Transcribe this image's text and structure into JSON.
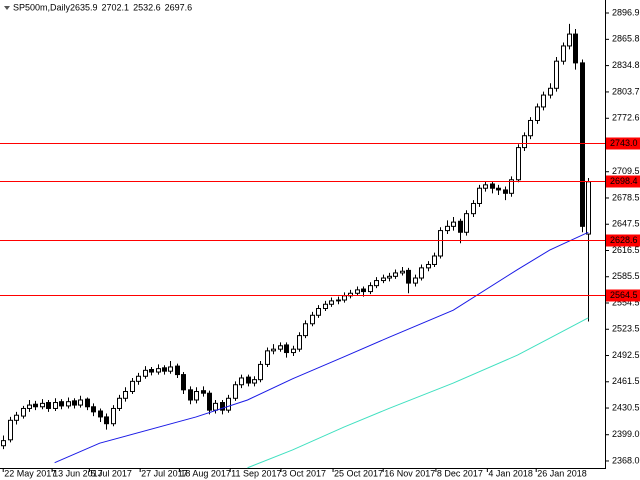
{
  "chart_data": {
    "type": "candlestick",
    "title": "SP500m,Daily",
    "header_values": [
      2635.9,
      2702.1,
      2532.6,
      2697.6
    ],
    "ylim": [
      2359.7,
      2908.7
    ],
    "yticks": [
      2896.9,
      2865.8,
      2834.8,
      2803.7,
      2772.6,
      2709.5,
      2678.5,
      2647.5,
      2616.5,
      2585.5,
      2554.5,
      2523.5,
      2492.5,
      2461.5,
      2430.5,
      {
        "value": 2399,
        "label": "2399.0"
      },
      {
        "value": 2368,
        "label": "2368.0"
      }
    ],
    "xlim": [
      -0.5,
      93.6
    ],
    "xticks": [
      {
        "value": 0,
        "label": "22 May 2017"
      },
      {
        "value": 7.6,
        "label": "13 Jun 2017"
      },
      {
        "value": 13.4,
        "label": "5 Jul 2017"
      },
      {
        "value": 21.3,
        "label": "27 Jul 2017"
      },
      {
        "value": 27.4,
        "label": "18 Aug 2017"
      },
      {
        "value": 35.3,
        "label": "11 Sep 2017"
      },
      {
        "value": 43.2,
        "label": "3 Oct 2017"
      },
      {
        "value": 51.3,
        "label": "25 Oct 2017"
      },
      {
        "value": 59.1,
        "label": "16 Nov 2017"
      },
      {
        "value": 67.3,
        "label": "8 Dec 2017"
      },
      {
        "value": 75.3,
        "label": "4 Jan 2018"
      },
      {
        "value": 82.9,
        "label": "26 Jan 2018"
      }
    ],
    "up_color": "#ffffff",
    "down_color": "#000000",
    "outline_color": "#000000",
    "ohlc": [
      [
        2386,
        2398,
        2382,
        2392
      ],
      [
        2393,
        2420,
        2390,
        2416
      ],
      [
        2416,
        2426,
        2411,
        2422
      ],
      [
        2421,
        2433,
        2418,
        2430
      ],
      [
        2430,
        2440,
        2426,
        2434
      ],
      [
        2435,
        2439,
        2428,
        2432
      ],
      [
        2432,
        2441,
        2429,
        2436
      ],
      [
        2437,
        2440,
        2426,
        2430
      ],
      [
        2430,
        2442,
        2427,
        2437
      ],
      [
        2438,
        2441,
        2429,
        2433
      ],
      [
        2433,
        2443,
        2430,
        2438
      ],
      [
        2439,
        2442,
        2430,
        2434
      ],
      [
        2434,
        2445,
        2431,
        2440
      ],
      [
        2441,
        2443,
        2428,
        2432
      ],
      [
        2432,
        2436,
        2421,
        2426
      ],
      [
        2427,
        2430,
        2414,
        2420
      ],
      [
        2420,
        2424,
        2405,
        2412
      ],
      [
        2412,
        2434,
        2409,
        2430
      ],
      [
        2430,
        2446,
        2427,
        2442
      ],
      [
        2442,
        2455,
        2438,
        2450
      ],
      [
        2450,
        2466,
        2447,
        2462
      ],
      [
        2462,
        2472,
        2458,
        2468
      ],
      [
        2468,
        2480,
        2465,
        2475
      ],
      [
        2476,
        2479,
        2469,
        2473
      ],
      [
        2473,
        2482,
        2470,
        2477
      ],
      [
        2478,
        2481,
        2470,
        2474
      ],
      [
        2474,
        2486,
        2471,
        2479
      ],
      [
        2480,
        2483,
        2466,
        2470
      ],
      [
        2470,
        2473,
        2447,
        2452
      ],
      [
        2452,
        2456,
        2435,
        2440
      ],
      [
        2440,
        2455,
        2436,
        2450
      ],
      [
        2451,
        2456,
        2444,
        2448
      ],
      [
        2448,
        2451,
        2423,
        2428
      ],
      [
        2428,
        2440,
        2424,
        2436
      ],
      [
        2437,
        2440,
        2423,
        2428
      ],
      [
        2428,
        2446,
        2425,
        2442
      ],
      [
        2442,
        2462,
        2439,
        2458
      ],
      [
        2458,
        2470,
        2454,
        2466
      ],
      [
        2467,
        2470,
        2456,
        2460
      ],
      [
        2460,
        2468,
        2456,
        2464
      ],
      [
        2464,
        2486,
        2461,
        2482
      ],
      [
        2482,
        2502,
        2479,
        2498
      ],
      [
        2498,
        2506,
        2494,
        2500
      ],
      [
        2500,
        2508,
        2497,
        2504
      ],
      [
        2505,
        2508,
        2490,
        2496
      ],
      [
        2496,
        2504,
        2492,
        2500
      ],
      [
        2500,
        2520,
        2497,
        2516
      ],
      [
        2516,
        2534,
        2513,
        2530
      ],
      [
        2530,
        2544,
        2527,
        2540
      ],
      [
        2540,
        2552,
        2537,
        2548
      ],
      [
        2548,
        2557,
        2545,
        2553
      ],
      [
        2553,
        2561,
        2550,
        2557
      ],
      [
        2557,
        2562,
        2553,
        2558
      ],
      [
        2558,
        2567,
        2555,
        2563
      ],
      [
        2563,
        2570,
        2560,
        2566
      ],
      [
        2566,
        2574,
        2563,
        2570
      ],
      [
        2571,
        2574,
        2562,
        2568
      ],
      [
        2568,
        2579,
        2565,
        2575
      ],
      [
        2575,
        2585,
        2572,
        2581
      ],
      [
        2581,
        2588,
        2578,
        2584
      ],
      [
        2584,
        2590,
        2580,
        2586
      ],
      [
        2586,
        2594,
        2583,
        2590
      ],
      [
        2590,
        2597,
        2587,
        2592
      ],
      [
        2593,
        2596,
        2566,
        2578
      ],
      [
        2578,
        2588,
        2574,
        2584
      ],
      [
        2584,
        2600,
        2581,
        2596
      ],
      [
        2596,
        2604,
        2592,
        2600
      ],
      [
        2600,
        2614,
        2597,
        2610
      ],
      [
        2610,
        2644,
        2607,
        2640
      ],
      [
        2640,
        2652,
        2636,
        2645
      ],
      [
        2645,
        2656,
        2640,
        2650
      ],
      [
        2651,
        2654,
        2625,
        2638
      ],
      [
        2638,
        2664,
        2634,
        2660
      ],
      [
        2660,
        2676,
        2656,
        2672
      ],
      [
        2672,
        2694,
        2668,
        2690
      ],
      [
        2690,
        2698,
        2686,
        2694
      ],
      [
        2695,
        2698,
        2684,
        2690
      ],
      [
        2690,
        2694,
        2682,
        2688
      ],
      [
        2688,
        2692,
        2676,
        2684
      ],
      [
        2684,
        2704,
        2680,
        2700
      ],
      [
        2700,
        2742,
        2697,
        2738
      ],
      [
        2738,
        2756,
        2734,
        2752
      ],
      [
        2752,
        2774,
        2748,
        2770
      ],
      [
        2770,
        2790,
        2766,
        2786
      ],
      [
        2786,
        2804,
        2782,
        2800
      ],
      [
        2800,
        2814,
        2796,
        2808
      ],
      [
        2808,
        2845,
        2804,
        2840
      ],
      [
        2840,
        2862,
        2836,
        2858
      ],
      [
        2858,
        2884,
        2854,
        2872
      ],
      [
        2872,
        2878,
        2830,
        2838
      ],
      [
        2838,
        2842,
        2638,
        2645
      ],
      [
        2635.9,
        2702.1,
        2532.6,
        2697.6
      ]
    ],
    "series": [
      {
        "color": "#1a1ae6",
        "x": [
          8,
          15,
          30,
          38,
          45,
          53,
          60,
          70,
          80,
          85,
          91
        ],
        "values": [
          2366,
          2389,
          2420,
          2440,
          2465,
          2491,
          2514,
          2546,
          2594,
          2617,
          2638
        ]
      },
      {
        "color": "#40e0c0",
        "x": [
          38,
          45,
          53,
          60,
          70,
          80,
          85,
          91
        ],
        "values": [
          2360,
          2381,
          2408,
          2430,
          2460,
          2493,
          2513,
          2537
        ]
      }
    ],
    "levels": [
      {
        "value": 2743,
        "label": "2743.0"
      },
      2698.4,
      2628.6,
      2564.5
    ],
    "level_color": "#ff0000"
  }
}
